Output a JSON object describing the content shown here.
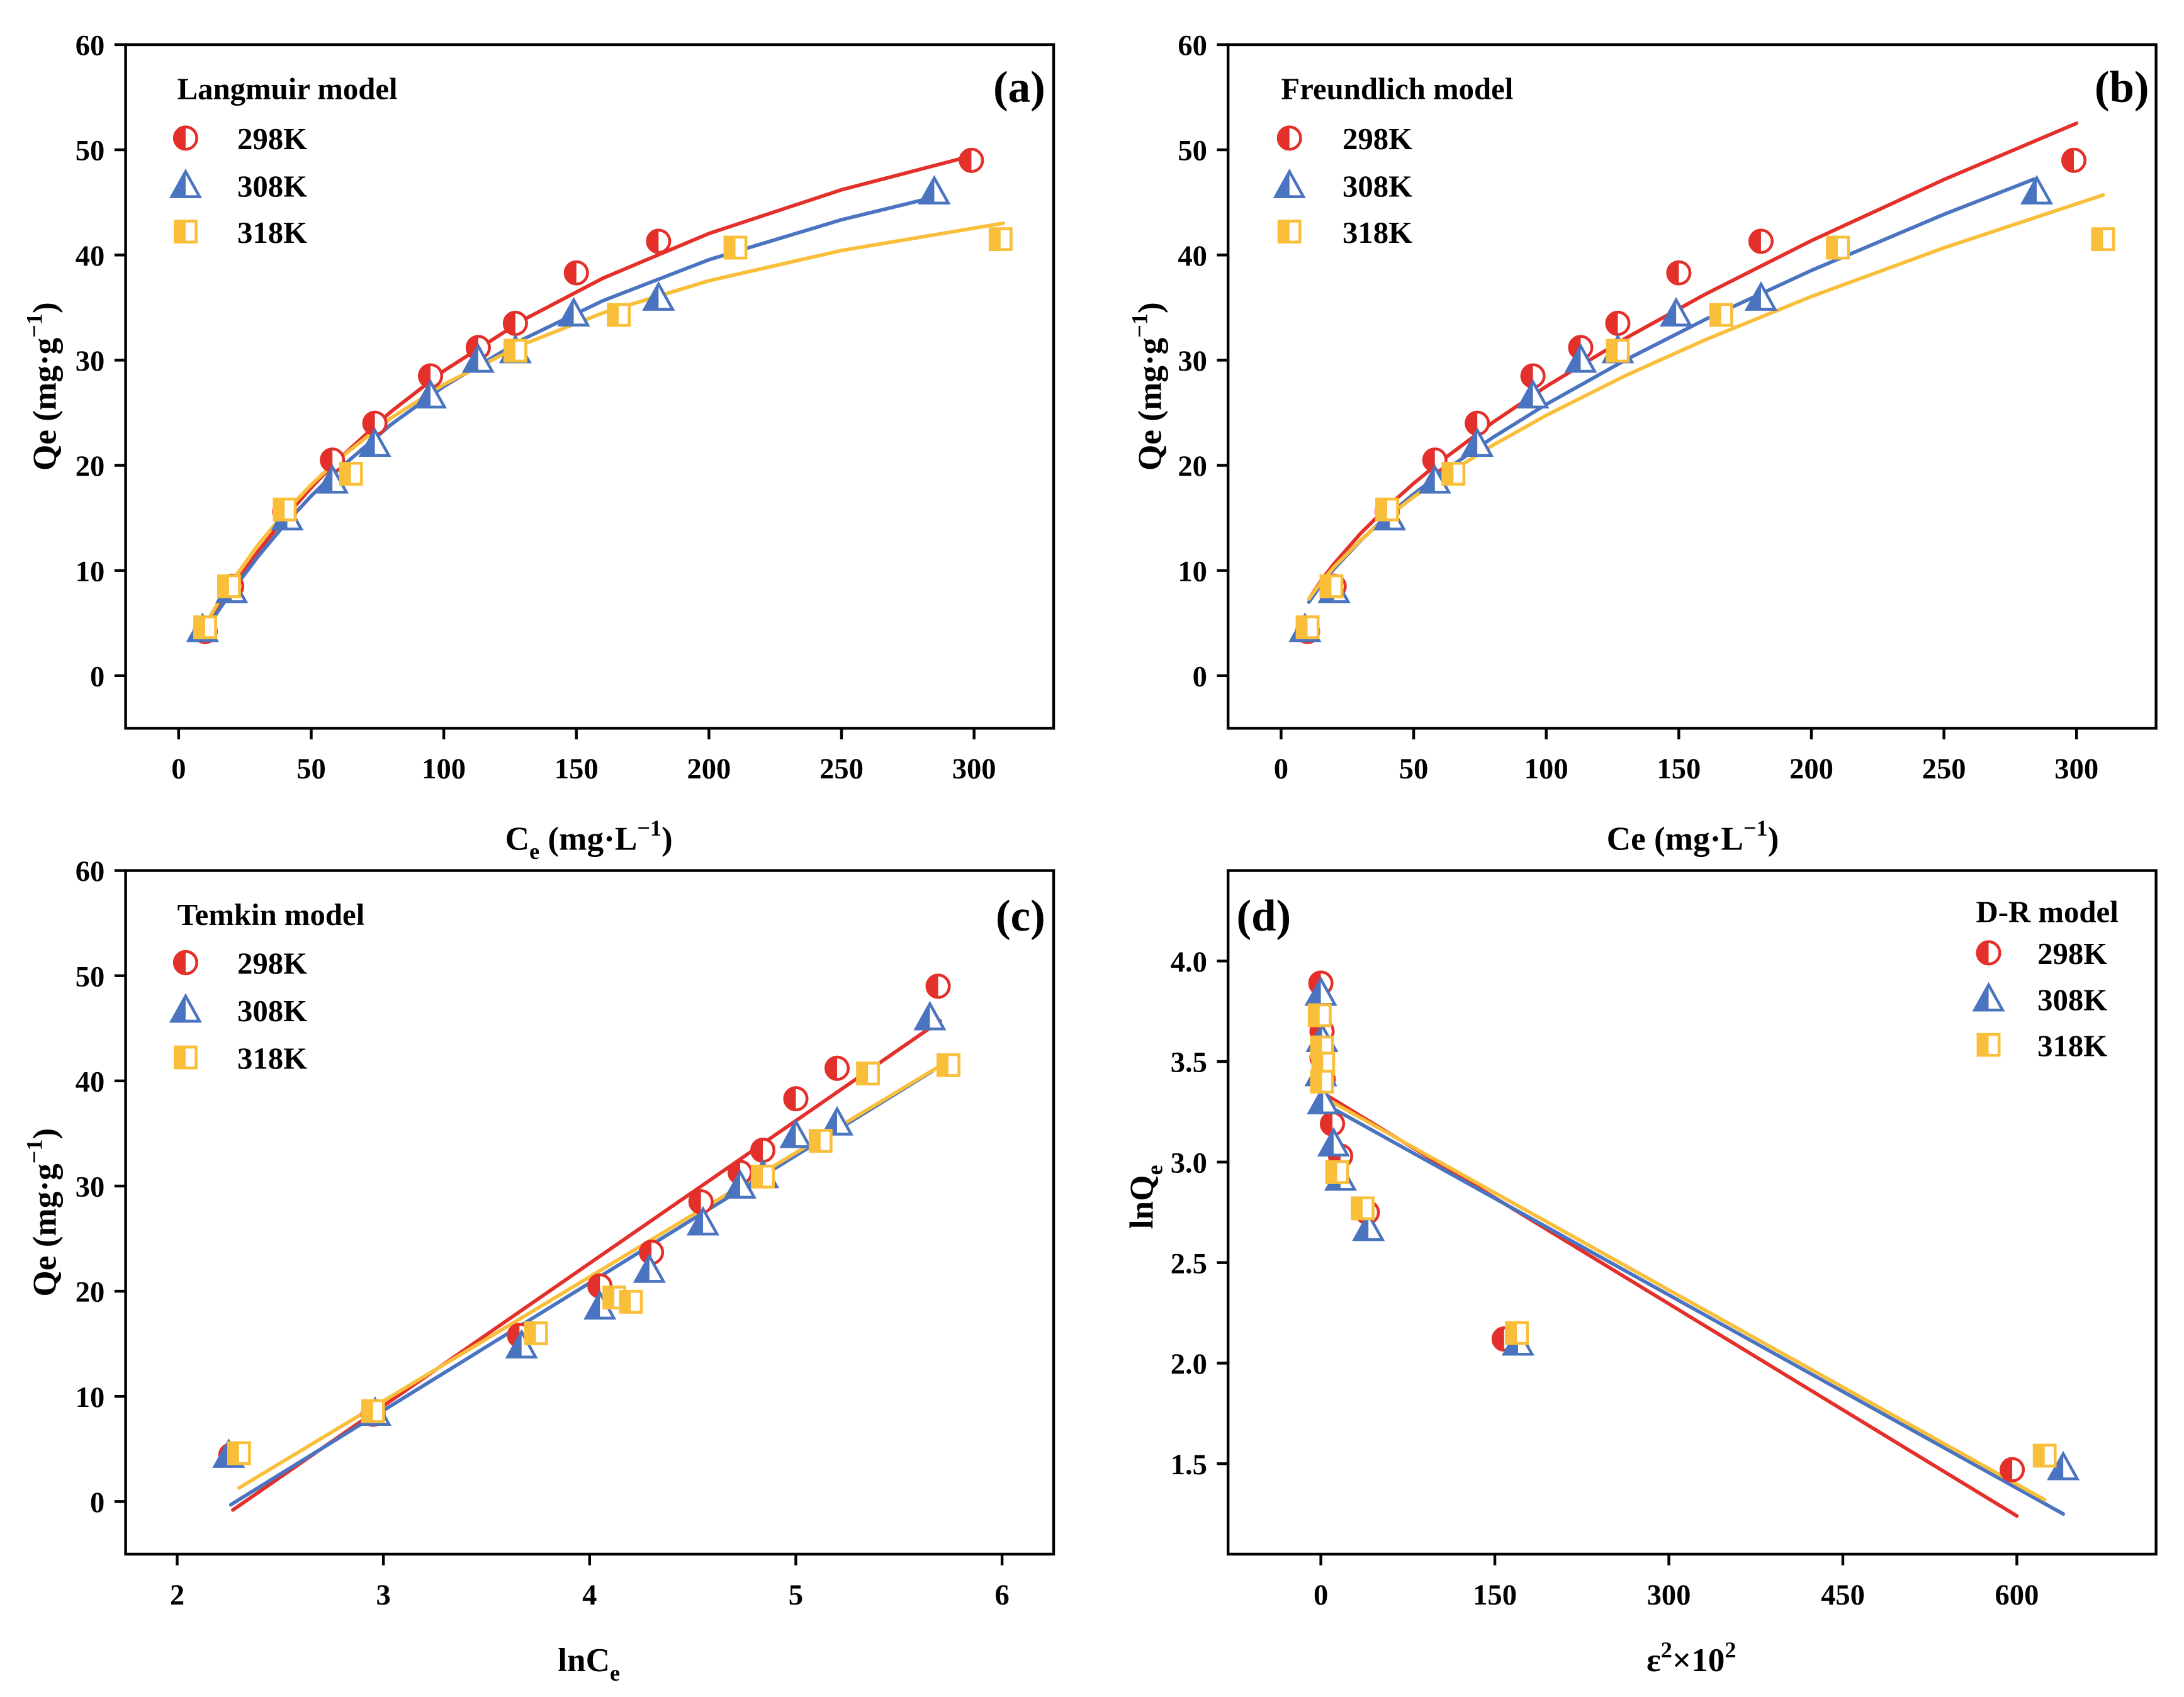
{
  "chart_data": [
    {
      "type": "scatter",
      "panel_label": "(a)",
      "title": "Langmuir model",
      "legend_position": "top-left",
      "xlabel": [
        {
          "t": "C"
        },
        {
          "sub": "e"
        },
        {
          "t": " (mg·L"
        },
        {
          "sup": "−1"
        },
        {
          "t": ")"
        }
      ],
      "ylabel": [
        {
          "t": "Qe (mg·g"
        },
        {
          "sup": "−1"
        },
        {
          "t": ")"
        }
      ],
      "xlim": [
        -20,
        330
      ],
      "ylim": [
        -5,
        60
      ],
      "xticks": [
        "0",
        "50",
        "100",
        "150",
        "200",
        "250",
        "300"
      ],
      "yticks": [
        "0",
        "10",
        "20",
        "30",
        "40",
        "50",
        "60"
      ],
      "series": [
        {
          "name": "298K",
          "marker": "half-circle",
          "color": "#e4302a",
          "x": [
            10,
            20,
            40,
            58,
            74,
            95,
            113,
            127,
            150,
            181,
            299
          ],
          "y": [
            4.2,
            8.5,
            15.6,
            20.5,
            24.0,
            28.5,
            31.2,
            33.5,
            38.3,
            41.3,
            49.0
          ],
          "fit": {
            "x": [
              10,
              15,
              20,
              30,
              40,
              50,
              60,
              80,
              100,
              130,
              160,
              200,
              250,
              298
            ],
            "y": [
              4.4,
              6.41,
              8.32,
              11.83,
              15.0,
              17.88,
              20.5,
              25.09,
              28.98,
              33.83,
              37.79,
              42.04,
              46.2,
              49.35
            ]
          }
        },
        {
          "name": "308K",
          "marker": "half-triangle",
          "color": "#4a74c0",
          "x": [
            9,
            20,
            41,
            58,
            74,
            95,
            113,
            127,
            149,
            181,
            285
          ],
          "y": [
            4.4,
            8.1,
            15.0,
            18.5,
            22.0,
            26.6,
            30.0,
            30.9,
            34.4,
            35.9,
            46.0
          ],
          "fit": {
            "x": [
              10,
              15,
              20,
              30,
              40,
              50,
              60,
              80,
              100,
              130,
              160,
              200,
              250,
              285
            ],
            "y": [
              4.24,
              6.18,
              8.0,
              11.35,
              14.37,
              17.09,
              19.55,
              23.86,
              27.5,
              32.0,
              35.65,
              39.55,
              43.35,
              45.5
            ]
          }
        },
        {
          "name": "318K",
          "marker": "half-square",
          "color": "#f9bf3b",
          "x": [
            10,
            19,
            40,
            65,
            127,
            166,
            210,
            310
          ],
          "y": [
            4.6,
            8.5,
            15.8,
            19.2,
            30.9,
            34.3,
            40.7,
            41.5
          ],
          "fit": {
            "x": [
              10,
              15,
              20,
              30,
              40,
              50,
              60,
              80,
              100,
              130,
              160,
              200,
              250,
              311
            ],
            "y": [
              4.84,
              6.97,
              8.94,
              12.45,
              15.49,
              18.16,
              20.52,
              24.48,
              27.7,
              31.51,
              34.49,
              37.55,
              40.43,
              43.02
            ]
          }
        }
      ]
    },
    {
      "type": "scatter",
      "panel_label": "(b)",
      "title": "Freundlich model",
      "legend_position": "top-left",
      "xlabel": [
        {
          "t": "Ce (mg·L"
        },
        {
          "sup": "−1"
        },
        {
          "t": ")"
        }
      ],
      "ylabel": [
        {
          "t": "Qe (mg·g"
        },
        {
          "sup": "−1"
        },
        {
          "t": ")"
        }
      ],
      "xlim": [
        -20,
        330
      ],
      "ylim": [
        -5,
        60
      ],
      "xticks": [
        "0",
        "50",
        "100",
        "150",
        "200",
        "250",
        "300"
      ],
      "yticks": [
        "0",
        "10",
        "20",
        "30",
        "40",
        "50",
        "60"
      ],
      "series": [
        {
          "name": "298K",
          "marker": "half-circle",
          "color": "#e4302a",
          "x": [
            10,
            20,
            40,
            58,
            74,
            95,
            113,
            127,
            150,
            181,
            299
          ],
          "y": [
            4.2,
            8.5,
            15.6,
            20.5,
            24.0,
            28.5,
            31.2,
            33.5,
            38.3,
            41.3,
            49.0
          ],
          "fit": {
            "x": [
              10.5,
              15,
              20,
              30,
              40,
              50,
              60,
              80,
              100,
              130,
              160,
              200,
              250,
              300
            ],
            "y": [
              7.3,
              8.99,
              10.65,
              13.53,
              16.03,
              18.28,
              20.35,
              24.11,
              27.5,
              32.09,
              36.27,
              41.36,
              47.17,
              52.52
            ]
          }
        },
        {
          "name": "308K",
          "marker": "half-triangle",
          "color": "#4a74c0",
          "x": [
            9,
            20,
            41,
            58,
            74,
            95,
            113,
            127,
            149,
            181,
            285
          ],
          "y": [
            4.4,
            8.1,
            15.0,
            18.5,
            22.0,
            26.6,
            30.0,
            30.9,
            34.4,
            35.9,
            46.0
          ],
          "fit": {
            "x": [
              10.5,
              15,
              20,
              30,
              40,
              50,
              60,
              80,
              100,
              130,
              160,
              200,
              250,
              284
            ],
            "y": [
              7.0,
              8.6,
              10.16,
              12.85,
              15.18,
              17.27,
              19.19,
              22.67,
              25.8,
              30.03,
              33.87,
              38.53,
              43.86,
              47.21
            ]
          }
        },
        {
          "name": "318K",
          "marker": "half-square",
          "color": "#f9bf3b",
          "x": [
            10,
            19,
            40,
            65,
            127,
            166,
            210,
            310
          ],
          "y": [
            4.6,
            8.5,
            15.8,
            19.2,
            30.9,
            34.3,
            40.7,
            41.5
          ],
          "fit": {
            "x": [
              10.5,
              15,
              20,
              30,
              40,
              50,
              60,
              80,
              100,
              130,
              160,
              200,
              250,
              310
            ],
            "y": [
              7.3,
              8.85,
              10.35,
              12.89,
              15.07,
              17.0,
              18.76,
              21.93,
              24.75,
              28.54,
              31.94,
              36.05,
              40.68,
              45.7
            ]
          }
        }
      ]
    },
    {
      "type": "scatter",
      "panel_label": "(c)",
      "title": "Temkin model",
      "legend_position": "top-left",
      "xlabel": [
        {
          "t": "lnC"
        },
        {
          "sub": "e"
        }
      ],
      "ylabel": [
        {
          "t": "Qe (mg·g"
        },
        {
          "sup": "−1"
        },
        {
          "t": ")"
        }
      ],
      "xlim": [
        1.75,
        6.25
      ],
      "ylim": [
        -5,
        60
      ],
      "xticks": [
        "2",
        "3",
        "4",
        "5",
        "6"
      ],
      "yticks": [
        "0",
        "10",
        "20",
        "30",
        "40",
        "50",
        "60"
      ],
      "series": [
        {
          "name": "298K",
          "marker": "half-circle",
          "color": "#e4302a",
          "x": [
            2.26,
            2.95,
            3.66,
            4.05,
            4.3,
            4.54,
            4.73,
            4.84,
            5.0,
            5.2,
            5.69
          ],
          "y": [
            4.4,
            8.3,
            15.8,
            20.5,
            23.7,
            28.5,
            31.3,
            33.4,
            38.3,
            41.2,
            49.0
          ],
          "fit": {
            "x": [
              2.27,
              5.7
            ],
            "y": [
              -0.8,
              45.7
            ]
          }
        },
        {
          "name": "308K",
          "marker": "half-triangle",
          "color": "#4a74c0",
          "x": [
            2.25,
            2.96,
            3.67,
            4.05,
            4.29,
            4.55,
            4.73,
            4.84,
            5.0,
            5.2,
            5.65
          ],
          "y": [
            4.4,
            8.4,
            14.8,
            18.5,
            22.0,
            26.5,
            30.0,
            31.0,
            34.8,
            36.0,
            46.0
          ],
          "fit": {
            "x": [
              2.26,
              5.66
            ],
            "y": [
              -0.3,
              40.9
            ]
          }
        },
        {
          "name": "318K",
          "marker": "half-square",
          "color": "#f9bf3b",
          "x": [
            2.3,
            2.95,
            3.74,
            4.12,
            4.2,
            4.84,
            5.12,
            5.35,
            5.74
          ],
          "y": [
            4.6,
            8.6,
            16.0,
            19.4,
            19.0,
            30.9,
            34.3,
            40.7,
            41.5
          ],
          "fit": {
            "x": [
              2.3,
              5.74
            ],
            "y": [
              1.3,
              41.9
            ]
          }
        }
      ]
    },
    {
      "type": "scatter",
      "panel_label": "(d)",
      "title": "D-R model",
      "legend_position": "top-right",
      "xlabel": [
        {
          "t": "ε"
        },
        {
          "sup": "2"
        },
        {
          "t": "×10"
        },
        {
          "sup": "2"
        }
      ],
      "ylabel": [
        {
          "t": "lnQ"
        },
        {
          "sub": "e"
        }
      ],
      "xlim": [
        -80,
        720
      ],
      "ylim": [
        1.05,
        4.45
      ],
      "xticks": [
        "0",
        "150",
        "300",
        "450",
        "600"
      ],
      "yticks": [
        "1.5",
        "2.0",
        "2.5",
        "3.0",
        "3.5",
        "4.0"
      ],
      "series": [
        {
          "name": "298K",
          "marker": "half-circle",
          "color": "#e4302a",
          "x": [
            0,
            1,
            1,
            2,
            10,
            17,
            40,
            158,
            596
          ],
          "y": [
            3.89,
            3.65,
            3.52,
            3.41,
            3.19,
            3.03,
            2.75,
            2.12,
            1.47
          ],
          "fit": {
            "x": [
              0,
              600
            ],
            "y": [
              3.35,
              1.24
            ]
          }
        },
        {
          "name": "308K",
          "marker": "half-triangle",
          "color": "#4a74c0",
          "x": [
            0,
            1,
            0,
            2,
            11,
            17,
            41,
            170,
            640
          ],
          "y": [
            3.84,
            3.61,
            3.44,
            3.3,
            3.09,
            2.92,
            2.67,
            2.1,
            1.48
          ],
          "fit": {
            "x": [
              0,
              640
            ],
            "y": [
              3.3,
              1.25
            ]
          }
        },
        {
          "name": "318K",
          "marker": "half-square",
          "color": "#f9bf3b",
          "x": [
            -1,
            1,
            2,
            1,
            14,
            36,
            169,
            624
          ],
          "y": [
            3.73,
            3.57,
            3.49,
            3.4,
            2.95,
            2.77,
            2.15,
            1.54
          ],
          "fit": {
            "x": [
              0,
              624
            ],
            "y": [
              3.33,
              1.32
            ]
          }
        }
      ]
    }
  ]
}
